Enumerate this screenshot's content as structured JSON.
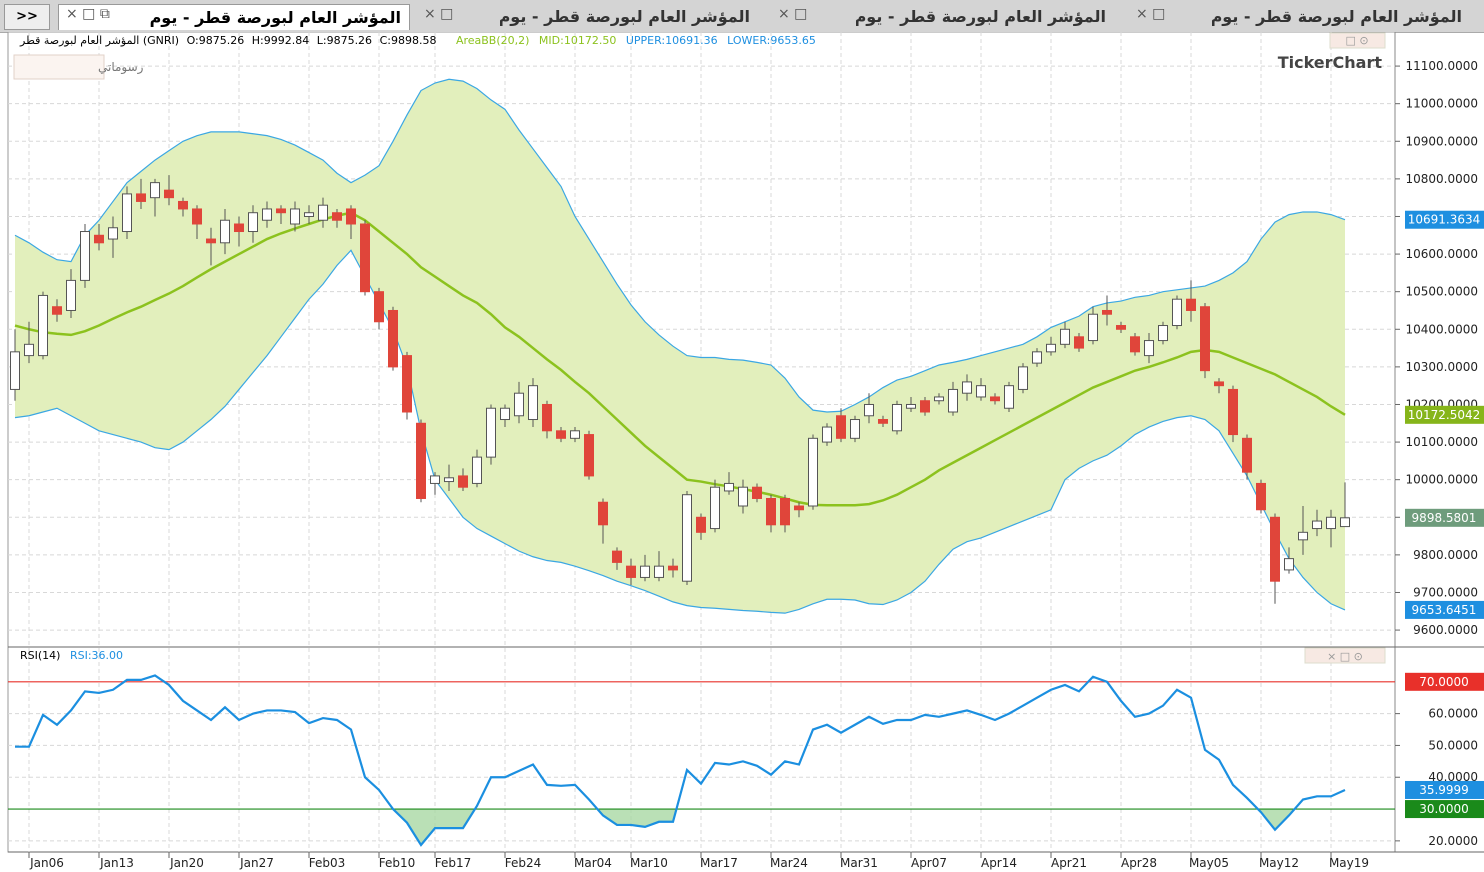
{
  "more": ">>",
  "tabs": [
    "المؤشر العام لبورصة قطر - يوم",
    "المؤشر العام لبورصة قطر - يوم",
    "المؤشر العام لبورصة قطر - يوم",
    "المؤشر العام لبورصة قطر - يوم"
  ],
  "drawings": "رسوماتي",
  "logo": "TickerChart",
  "chart_data": [
    {
      "type": "candlestick",
      "name": "المؤشر العام لبورصة قطر (GNRI)",
      "ohlc_labels": [
        "O:9875.26",
        "H:9992.84",
        "L:9875.26",
        "C:9898.58"
      ],
      "bb_labels": [
        "AreaBB(20,2)",
        "MID:10172.50",
        "UPPER:10691.36",
        "LOWER:9653.65"
      ],
      "categories": [
        null,
        "Jan06",
        null,
        null,
        null,
        null,
        "Jan13",
        null,
        null,
        null,
        null,
        "Jan20",
        null,
        null,
        null,
        null,
        "Jan27",
        null,
        null,
        null,
        null,
        "Feb03",
        null,
        null,
        null,
        null,
        "Feb10",
        null,
        null,
        null,
        "Feb17",
        null,
        null,
        null,
        null,
        "Feb24",
        null,
        null,
        null,
        null,
        "Mar04",
        null,
        null,
        null,
        "Mar10",
        null,
        null,
        null,
        null,
        "Mar17",
        null,
        null,
        null,
        null,
        "Mar24",
        null,
        null,
        null,
        null,
        "Mar31",
        null,
        null,
        null,
        null,
        "Apr07",
        null,
        null,
        null,
        null,
        "Apr14",
        null,
        null,
        null,
        null,
        "Apr21",
        null,
        null,
        null,
        null,
        "Apr28",
        null,
        null,
        null,
        null,
        "May05",
        null,
        null,
        null,
        null,
        "May12",
        null,
        null,
        null,
        null,
        "May19",
        null
      ],
      "open": [
        10240,
        10330,
        10330,
        10460,
        10450,
        10530,
        10650,
        10640,
        10660,
        10760,
        10750,
        10770,
        10740,
        10720,
        10640,
        10630,
        10680,
        10660,
        10690,
        10720,
        10680,
        10700,
        10690,
        10710,
        10720,
        10680,
        10500,
        10450,
        10330,
        10150,
        9990,
        9995,
        10010,
        9990,
        10060,
        10160,
        10170,
        10160,
        10200,
        10130,
        10110,
        10120,
        9940,
        9810,
        9770,
        9740,
        9740,
        9770,
        9730,
        9900,
        9870,
        9970,
        9930,
        9980,
        9950,
        9950,
        9930,
        9930,
        10100,
        10170,
        10110,
        10170,
        10160,
        10130,
        10190,
        10210,
        10210,
        10180,
        10230,
        10220,
        10220,
        10190,
        10240,
        10310,
        10340,
        10360,
        10380,
        10370,
        10450,
        10410,
        10380,
        10330,
        10370,
        10410,
        10480,
        10460,
        10260,
        10240,
        10110,
        9990,
        9900,
        9760,
        9840,
        9870,
        9870,
        9875.26
      ],
      "high": [
        10400,
        10420,
        10500,
        10480,
        10560,
        10680,
        10680,
        10700,
        10780,
        10800,
        10800,
        10810,
        10750,
        10730,
        10670,
        10720,
        10700,
        10730,
        10740,
        10730,
        10740,
        10730,
        10750,
        10720,
        10730,
        10690,
        10510,
        10460,
        10340,
        10160,
        10020,
        10040,
        10030,
        10080,
        10200,
        10200,
        10260,
        10270,
        10210,
        10140,
        10140,
        10130,
        9950,
        9820,
        9790,
        9800,
        9810,
        9790,
        9970,
        9910,
        10000,
        10020,
        10000,
        9990,
        9960,
        9960,
        9940,
        10120,
        10150,
        10190,
        10170,
        10230,
        10170,
        10210,
        10220,
        10220,
        10230,
        10260,
        10280,
        10270,
        10230,
        10260,
        10310,
        10350,
        10380,
        10420,
        10390,
        10460,
        10490,
        10420,
        10390,
        10390,
        10420,
        10490,
        10530,
        10470,
        10270,
        10250,
        10120,
        10000,
        9910,
        9820,
        9930,
        9920,
        9920,
        9992.84
      ],
      "low": [
        10210,
        10310,
        10320,
        10420,
        10430,
        10510,
        10610,
        10590,
        10640,
        10720,
        10700,
        10730,
        10700,
        10640,
        10570,
        10600,
        10620,
        10630,
        10670,
        10680,
        10660,
        10680,
        10670,
        10670,
        10640,
        10490,
        10400,
        10290,
        10160,
        9940,
        9960,
        9970,
        9970,
        9980,
        10040,
        10140,
        10150,
        10140,
        10110,
        10100,
        10100,
        10000,
        9830,
        9760,
        9720,
        9730,
        9730,
        9740,
        9720,
        9840,
        9860,
        9960,
        9910,
        9940,
        9860,
        9860,
        9900,
        9920,
        10090,
        10100,
        10100,
        10150,
        10140,
        10120,
        10180,
        10170,
        10200,
        10170,
        10210,
        10210,
        10200,
        10180,
        10230,
        10300,
        10330,
        10350,
        10340,
        10360,
        10410,
        10390,
        10330,
        10310,
        10360,
        10400,
        10420,
        10270,
        10230,
        10100,
        10000,
        9910,
        9670,
        9750,
        9800,
        9850,
        9820,
        9875.26
      ],
      "close": [
        10340,
        10360,
        10490,
        10440,
        10530,
        10660,
        10630,
        10670,
        10760,
        10740,
        10790,
        10750,
        10720,
        10680,
        10630,
        10690,
        10660,
        10710,
        10720,
        10710,
        10720,
        10710,
        10730,
        10690,
        10680,
        10500,
        10420,
        10300,
        10180,
        9950,
        10010,
        10005,
        9980,
        10060,
        10190,
        10190,
        10230,
        10250,
        10130,
        10110,
        10130,
        10010,
        9880,
        9780,
        9740,
        9770,
        9770,
        9760,
        9960,
        9860,
        9980,
        9990,
        9980,
        9950,
        9880,
        9880,
        9920,
        10110,
        10140,
        10110,
        10160,
        10200,
        10150,
        10200,
        10200,
        10180,
        10220,
        10240,
        10260,
        10250,
        10210,
        10250,
        10300,
        10340,
        10360,
        10400,
        10350,
        10440,
        10440,
        10400,
        10340,
        10370,
        10410,
        10480,
        10450,
        10290,
        10250,
        10120,
        10020,
        9920,
        9730,
        9790,
        9860,
        9890,
        9900,
        9898.58
      ],
      "up_color": "#ffffff",
      "down_color": "#e0453a",
      "wick_color": "#555555",
      "band_fill": "#e2efbc",
      "bands": [
        {
          "color": "#3ba7e3",
          "values": [
            10650,
            10630,
            10605,
            10585,
            10580,
            10650,
            10690,
            10740,
            10790,
            10820,
            10850,
            10875,
            10900,
            10915,
            10925,
            10925,
            10925,
            10920,
            10915,
            10905,
            10890,
            10870,
            10850,
            10815,
            10790,
            10810,
            10835,
            10900,
            10970,
            11035,
            11055,
            11065,
            11060,
            11040,
            11010,
            10985,
            10930,
            10880,
            10830,
            10780,
            10700,
            10640,
            10580,
            10520,
            10465,
            10420,
            10385,
            10355,
            10330,
            10325,
            10325,
            10320,
            10318,
            10312,
            10305,
            10270,
            10220,
            10185,
            10180,
            10182,
            10200,
            10220,
            10245,
            10265,
            10275,
            10290,
            10305,
            10312,
            10320,
            10330,
            10340,
            10350,
            10360,
            10380,
            10405,
            10420,
            10435,
            10460,
            10470,
            10475,
            10485,
            10490,
            10500,
            10505,
            10510,
            10515,
            10530,
            10550,
            10580,
            10640,
            10685,
            10705,
            10712,
            10712,
            10705,
            10691.36
          ]
        },
        {
          "color": "#8cc21e",
          "values": [
            10410,
            10400,
            10392,
            10388,
            10385,
            10395,
            10410,
            10428,
            10445,
            10460,
            10478,
            10495,
            10515,
            10538,
            10560,
            10580,
            10600,
            10620,
            10640,
            10655,
            10668,
            10680,
            10692,
            10702,
            10710,
            10690,
            10660,
            10630,
            10600,
            10565,
            10540,
            10515,
            10490,
            10470,
            10440,
            10405,
            10380,
            10350,
            10320,
            10292,
            10260,
            10230,
            10195,
            10160,
            10125,
            10090,
            10060,
            10030,
            10000,
            9995,
            9988,
            9982,
            9975,
            9968,
            9960,
            9950,
            9940,
            9933,
            9932,
            9932,
            9932,
            9935,
            9945,
            9960,
            9980,
            10000,
            10025,
            10045,
            10065,
            10085,
            10105,
            10125,
            10145,
            10165,
            10185,
            10205,
            10225,
            10245,
            10260,
            10275,
            10290,
            10300,
            10312,
            10325,
            10340,
            10345,
            10340,
            10325,
            10310,
            10295,
            10280,
            10260,
            10240,
            10220,
            10195,
            10172.5
          ]
        },
        {
          "color": "#3ba7e3",
          "values": [
            10165,
            10170,
            10180,
            10190,
            10170,
            10150,
            10130,
            10120,
            10110,
            10100,
            10085,
            10080,
            10100,
            10130,
            10160,
            10195,
            10240,
            10285,
            10330,
            10380,
            10430,
            10480,
            10520,
            10570,
            10610,
            10540,
            10470,
            10400,
            10300,
            10130,
            10000,
            9950,
            9900,
            9870,
            9850,
            9830,
            9810,
            9795,
            9785,
            9780,
            9770,
            9758,
            9745,
            9730,
            9718,
            9705,
            9690,
            9675,
            9665,
            9660,
            9658,
            9655,
            9652,
            9650,
            9647,
            9645,
            9655,
            9670,
            9682,
            9682,
            9680,
            9670,
            9668,
            9680,
            9700,
            9730,
            9775,
            9815,
            9835,
            9845,
            9860,
            9875,
            9890,
            9905,
            9920,
            10000,
            10030,
            10050,
            10065,
            10090,
            10120,
            10140,
            10155,
            10165,
            10170,
            10160,
            10130,
            10070,
            10010,
            9935,
            9860,
            9790,
            9740,
            9700,
            9670,
            9653.65
          ]
        }
      ],
      "ylim": [
        9555,
        11180
      ],
      "yticks": [
        {
          "value": 9600,
          "label": "9600.0000"
        },
        {
          "value": 9700,
          "label": "9700.0000"
        },
        {
          "value": 9800,
          "label": "9800.0000"
        },
        {
          "value": 9900,
          "label": "9900.0000"
        },
        {
          "value": 10000,
          "label": "10000.0000"
        },
        {
          "value": 10100,
          "label": "10100.0000"
        },
        {
          "value": 10200,
          "label": "10200.0000"
        },
        {
          "value": 10300,
          "label": "10300.0000"
        },
        {
          "value": 10400,
          "label": "10400.0000"
        },
        {
          "value": 10500,
          "label": "10500.0000"
        },
        {
          "value": 10600,
          "label": "10600.0000"
        },
        {
          "value": 10700,
          "label": "10700.0000"
        },
        {
          "value": 10800,
          "label": "10800.0000"
        },
        {
          "value": 10900,
          "label": "10900.0000"
        },
        {
          "value": 11000,
          "label": "11000.0000"
        },
        {
          "value": 11100,
          "label": "11100.0000"
        }
      ],
      "markers": [
        {
          "value": 10691.3634,
          "color": "#1e8fe0"
        },
        {
          "value": 10172.5042,
          "color": "#86b51a"
        },
        {
          "value": 9898.5801,
          "color": "#6e9c7c"
        },
        {
          "value": 9653.6451,
          "color": "#1e8fe0"
        }
      ],
      "grid": true
    },
    {
      "type": "line",
      "title": "RSI(14)",
      "value_label": "RSI:36.00",
      "color": "#1b8fe0",
      "fill_color": "#a9d8a4",
      "values": [
        49.6,
        49.6,
        59.6,
        56.5,
        61,
        67,
        66.5,
        67.5,
        70.6,
        70.6,
        72,
        69,
        64,
        61,
        58,
        62,
        58,
        60,
        61,
        61,
        60.5,
        57,
        58.6,
        58,
        55,
        40,
        36,
        30,
        25.7,
        18.7,
        24,
        24,
        24,
        31,
        40,
        40,
        42,
        44,
        37.6,
        37.3,
        37.6,
        33,
        28,
        25,
        25,
        24.4,
        26,
        26,
        42.3,
        38,
        44.5,
        44,
        45,
        43.6,
        40.8,
        45,
        44,
        55,
        56.5,
        54,
        56.5,
        59,
        56.8,
        58,
        58,
        59.6,
        59,
        60,
        61,
        59.6,
        58,
        60,
        62.5,
        65,
        67.5,
        69,
        67,
        71.6,
        70,
        64,
        59,
        60,
        62.5,
        67.5,
        65,
        48.6,
        45.5,
        37.6,
        33.5,
        29,
        23.5,
        28,
        33,
        34,
        34,
        36
      ],
      "ylim": [
        16.5,
        80
      ],
      "yticks": [
        {
          "value": 20,
          "label": "20.0000"
        },
        {
          "value": 40,
          "label": "40.0000"
        },
        {
          "value": 50,
          "label": "50.0000"
        },
        {
          "value": 60,
          "label": "60.0000"
        }
      ],
      "levels": [
        {
          "value": 70,
          "label": "70.0000",
          "color": "#e8302a"
        },
        {
          "value": 30,
          "label": "30.0000",
          "color": "#1a8a1a"
        }
      ],
      "markers": [
        {
          "value": 35.9999,
          "color": "#1e8fe0"
        }
      ],
      "grid": true
    }
  ]
}
